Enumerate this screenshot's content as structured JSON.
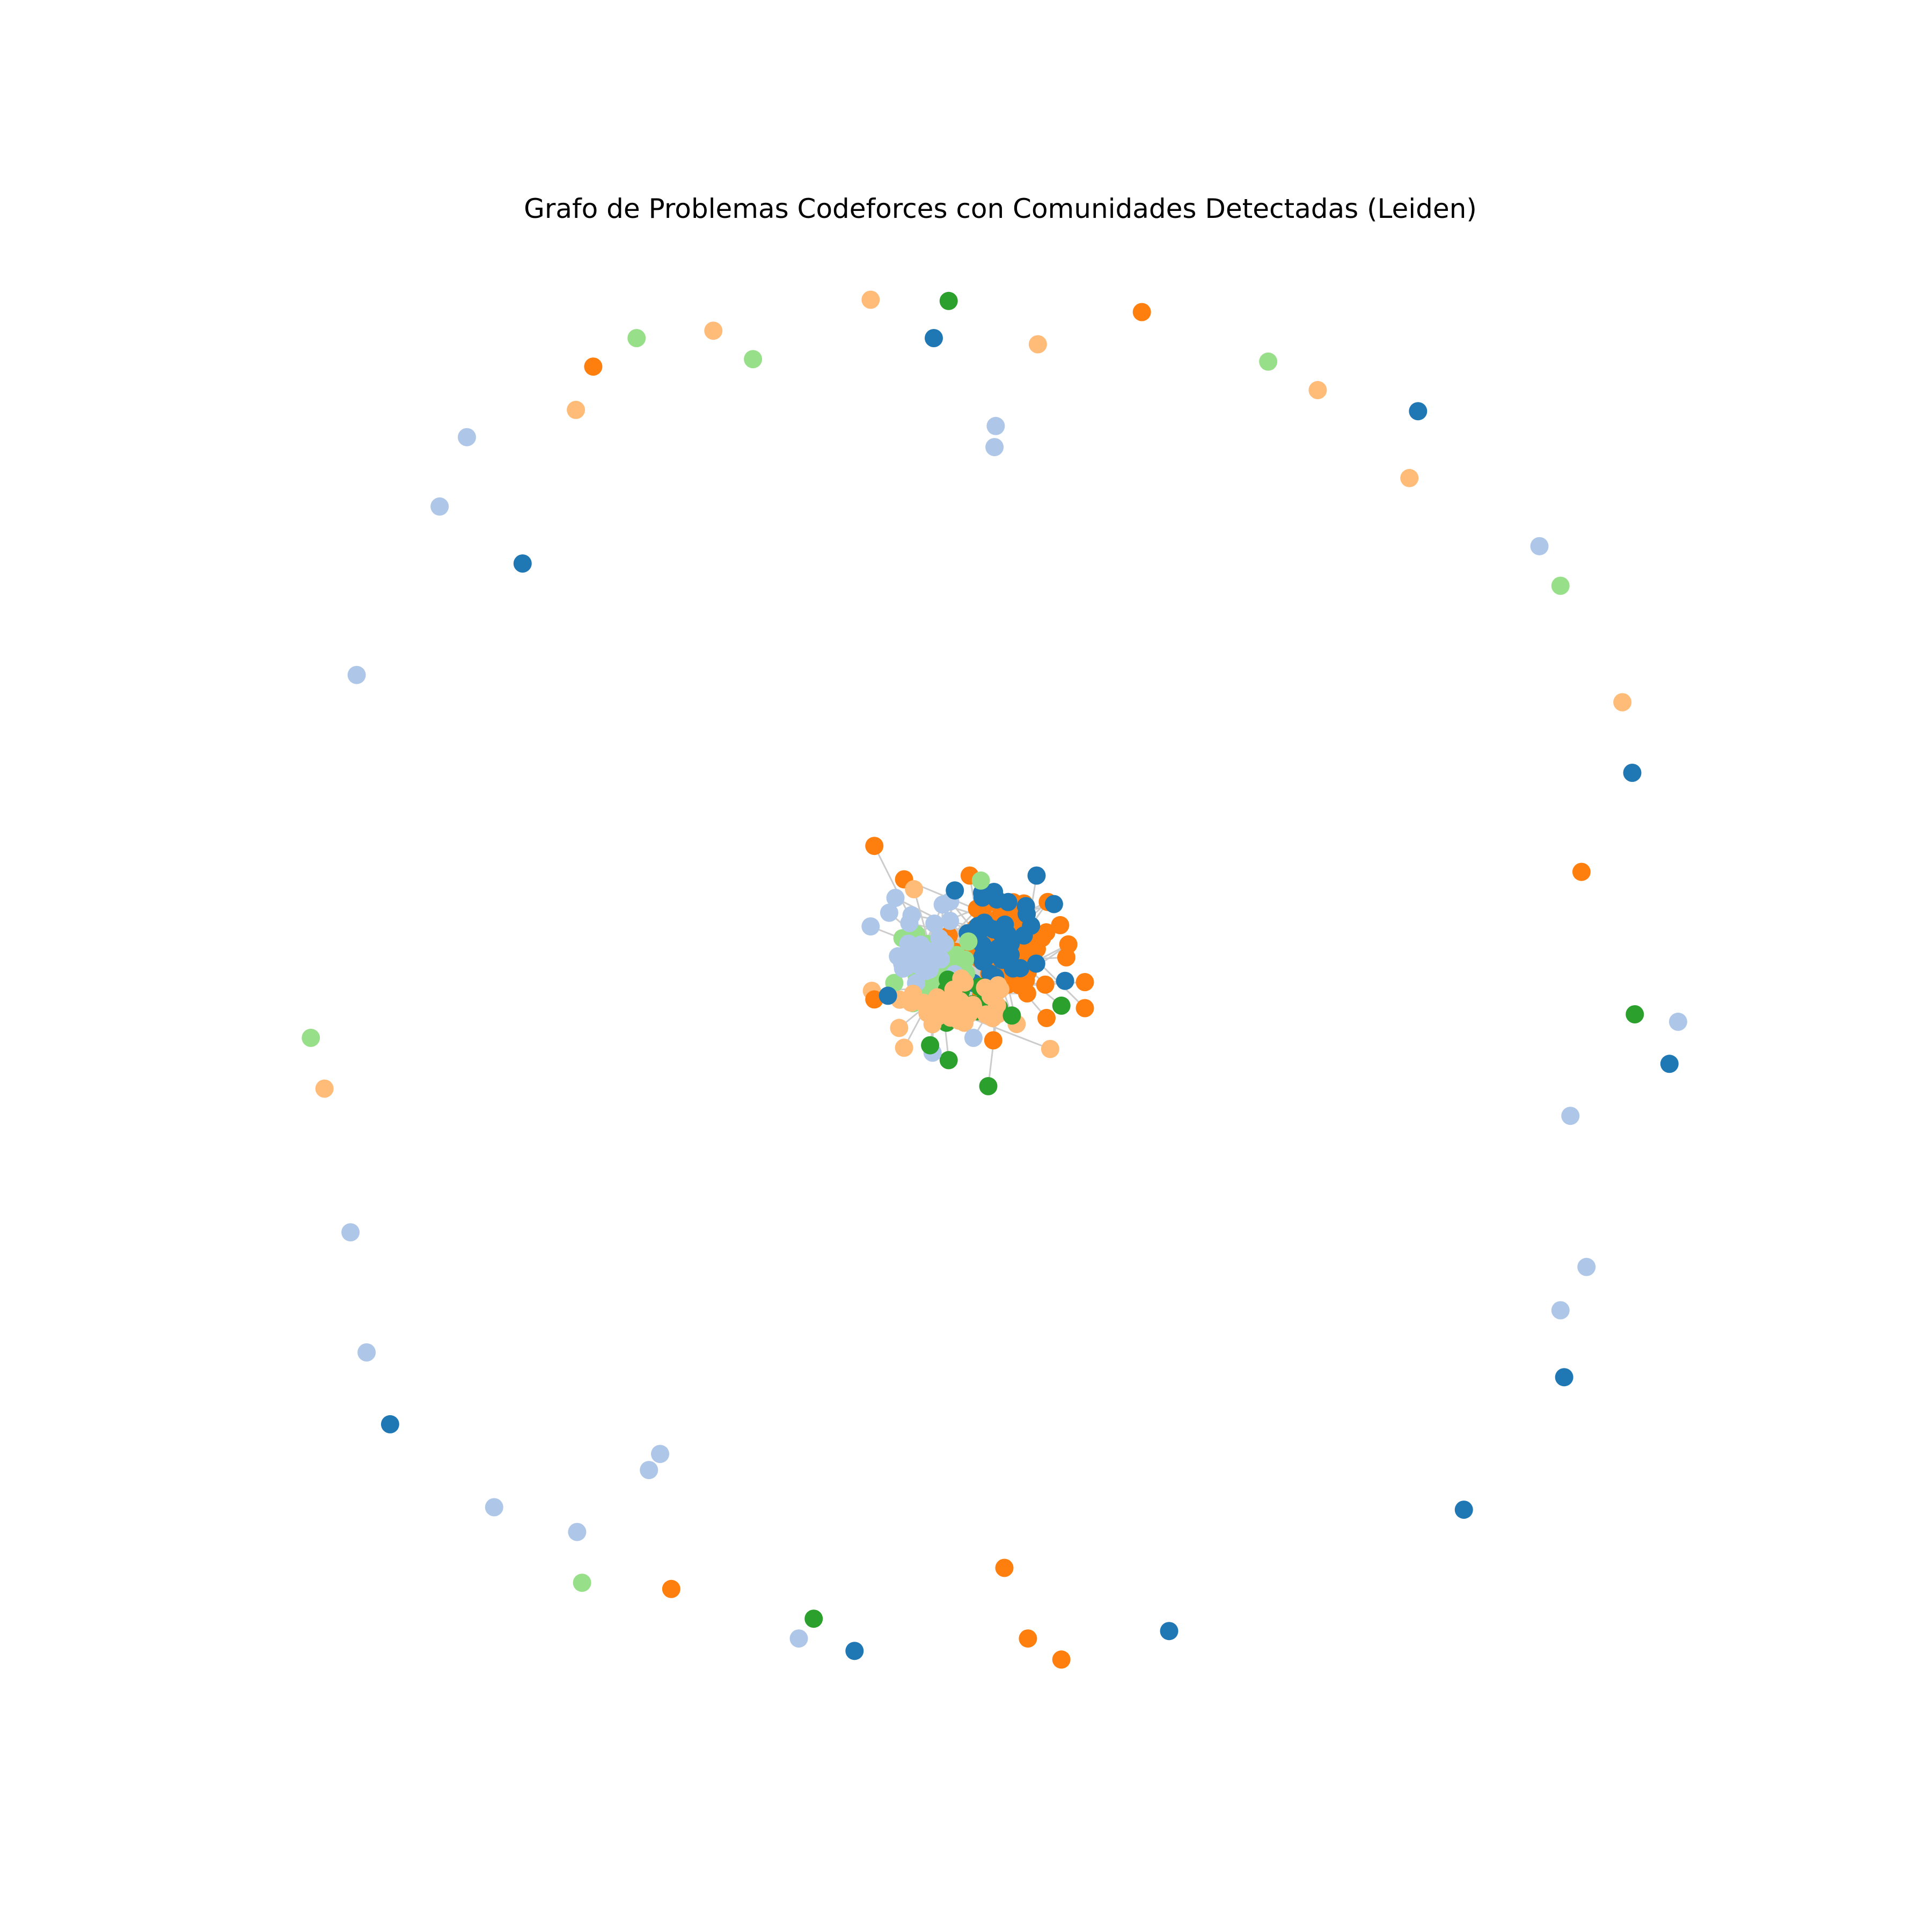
{
  "title": "Grafo de Problemas Codeforces con Comunidades Detectadas (Leiden)",
  "colors": {
    "community-0": "#1f77b4",
    "community-1": "#aec7e8",
    "community-2": "#ff7f0e",
    "community-3": "#ffbb78",
    "community-4": "#2ca02c",
    "community-5": "#98df8a",
    "edge": "#cccccc"
  }
}
